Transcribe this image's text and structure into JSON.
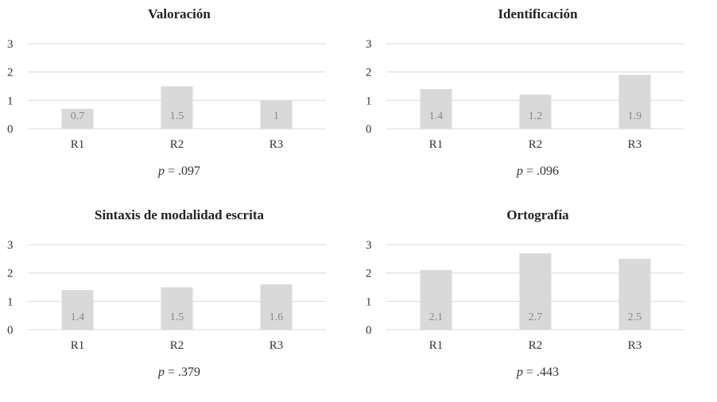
{
  "colors": {
    "bar": "#d9d9d9",
    "grid": "#d9d9d9",
    "text": "#333333",
    "label": "#888888"
  },
  "chart_data": [
    {
      "type": "bar",
      "title": "Valoración",
      "categories": [
        "R1",
        "R2",
        "R3"
      ],
      "values": [
        0.7,
        1.5,
        1
      ],
      "value_labels": [
        "0.7",
        "1.5",
        "1"
      ],
      "ylim": [
        0,
        3
      ],
      "yticks": [
        "0",
        "1",
        "2",
        "3"
      ],
      "grid": true,
      "legend": "none",
      "p_label": "p",
      "p_value": " = .097"
    },
    {
      "type": "bar",
      "title": "Identificación",
      "categories": [
        "R1",
        "R2",
        "R3"
      ],
      "values": [
        1.4,
        1.2,
        1.9
      ],
      "value_labels": [
        "1.4",
        "1.2",
        "1.9"
      ],
      "ylim": [
        0,
        3
      ],
      "yticks": [
        "0",
        "1",
        "2",
        "3"
      ],
      "grid": true,
      "legend": "none",
      "p_label": "p",
      "p_value": " = .096"
    },
    {
      "type": "bar",
      "title": "Sintaxis de modalidad escrita",
      "categories": [
        "R1",
        "R2",
        "R3"
      ],
      "values": [
        1.4,
        1.5,
        1.6
      ],
      "value_labels": [
        "1.4",
        "1.5",
        "1.6"
      ],
      "ylim": [
        0,
        3
      ],
      "yticks": [
        "0",
        "1",
        "2",
        "3"
      ],
      "grid": true,
      "legend": "none",
      "p_label": "p",
      "p_value": " = .379"
    },
    {
      "type": "bar",
      "title": "Ortografía",
      "categories": [
        "R1",
        "R2",
        "R3"
      ],
      "values": [
        2.1,
        2.7,
        2.5
      ],
      "value_labels": [
        "2.1",
        "2.7",
        "2.5"
      ],
      "ylim": [
        0,
        3
      ],
      "yticks": [
        "0",
        "1",
        "2",
        "3"
      ],
      "grid": true,
      "legend": "none",
      "p_label": "p",
      "p_value": " = .443"
    }
  ]
}
